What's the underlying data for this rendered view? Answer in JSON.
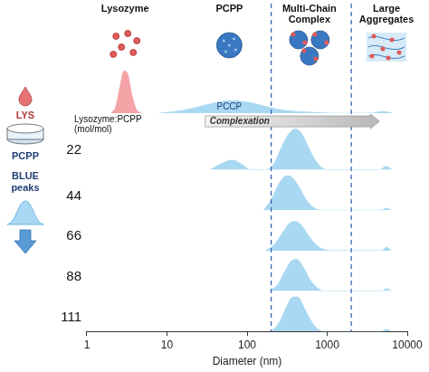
{
  "side_panel": {
    "labels": [
      "LYS",
      "PCPP",
      "BLUE peaks"
    ]
  },
  "chart_data": [
    {
      "type": "area",
      "headers": [
        {
          "text": "Lysozyme",
          "x": 3
        },
        {
          "text": "PCPP",
          "x": 60
        },
        {
          "text": "Multi-Chain Complex",
          "x": 600
        },
        {
          "text": "Large Aggregates",
          "x": 5500
        }
      ],
      "vlines": [
        200,
        2000
      ],
      "annotations": [
        {
          "text": "PCCP",
          "x": 60,
          "y": 0.14
        }
      ],
      "series": [
        {
          "name": "Lysozyme",
          "color": "#f4a3a6",
          "x": [
            2,
            2.3,
            2.6,
            2.9,
            3.2,
            3.6,
            4.1,
            4.8
          ],
          "values": [
            0,
            0.15,
            0.6,
            0.95,
            0.9,
            0.45,
            0.1,
            0
          ]
        },
        {
          "name": "PCPP",
          "color": "#a9d8f2",
          "x": [
            8,
            12,
            20,
            30,
            45,
            60,
            80,
            120,
            180,
            300,
            500,
            800,
            1200,
            3500,
            5000,
            6500
          ],
          "values": [
            0,
            0.03,
            0.1,
            0.18,
            0.25,
            0.28,
            0.27,
            0.22,
            0.14,
            0.06,
            0.03,
            0.01,
            0,
            0,
            0.04,
            0
          ]
        }
      ],
      "ylim": [
        0,
        1
      ],
      "tick_labels": false
    },
    {
      "type": "area",
      "title": "22",
      "subtitle": "Lysozyme:PCPP (mol/mol)",
      "arrow": {
        "text": "Complexation",
        "from": 30,
        "to": 4500
      },
      "series": [
        {
          "color": "#a9d8f2",
          "x": [
            35,
            50,
            65,
            85,
            110,
            170,
            220,
            270,
            330,
            400,
            480,
            580,
            700,
            850,
            1000,
            4500,
            5500,
            6500
          ],
          "values": [
            0,
            0.12,
            0.17,
            0.1,
            0,
            0,
            0.12,
            0.4,
            0.63,
            0.72,
            0.64,
            0.4,
            0.18,
            0.04,
            0,
            0,
            0.06,
            0
          ]
        }
      ],
      "ylim": [
        0,
        1
      ],
      "tick_labels": false
    },
    {
      "type": "area",
      "title": "44",
      "series": [
        {
          "color": "#a9d8f2",
          "x": [
            160,
            200,
            250,
            310,
            370,
            450,
            550,
            680,
            850,
            4800,
            5500,
            6300
          ],
          "values": [
            0,
            0.25,
            0.65,
            0.85,
            0.8,
            0.55,
            0.25,
            0.06,
            0,
            0,
            0.05,
            0
          ]
        }
      ],
      "ylim": [
        0,
        1
      ],
      "tick_labels": false
    },
    {
      "type": "area",
      "title": "66",
      "series": [
        {
          "color": "#a9d8f2",
          "x": [
            170,
            220,
            280,
            340,
            400,
            480,
            580,
            720,
            900,
            1100,
            4800,
            5500,
            6300
          ],
          "values": [
            0,
            0.15,
            0.45,
            0.68,
            0.72,
            0.62,
            0.38,
            0.15,
            0.03,
            0,
            0,
            0.08,
            0
          ]
        }
      ],
      "ylim": [
        0,
        1
      ],
      "tick_labels": false
    },
    {
      "type": "area",
      "title": "88",
      "series": [
        {
          "color": "#a9d8f2",
          "x": [
            190,
            240,
            300,
            360,
            420,
            500,
            600,
            750,
            900,
            4800,
            5500,
            6300
          ],
          "values": [
            0,
            0.15,
            0.5,
            0.75,
            0.78,
            0.6,
            0.3,
            0.08,
            0,
            0,
            0.06,
            0
          ]
        }
      ],
      "ylim": [
        0,
        1
      ],
      "tick_labels": false
    },
    {
      "type": "area",
      "title": "111",
      "series": [
        {
          "color": "#a9d8f2",
          "x": [
            200,
            250,
            310,
            370,
            430,
            510,
            620,
            760,
            900,
            4800,
            5500,
            6300
          ],
          "values": [
            0,
            0.2,
            0.6,
            0.85,
            0.85,
            0.6,
            0.28,
            0.06,
            0,
            0,
            0.05,
            0
          ]
        }
      ],
      "ylim": [
        0,
        1
      ],
      "xlim": [
        1,
        10000
      ],
      "xticks": [
        1,
        10,
        100,
        1000,
        10000
      ],
      "log": "x",
      "x_label": "Diameter (nm)",
      "tick_labels": "x"
    }
  ]
}
